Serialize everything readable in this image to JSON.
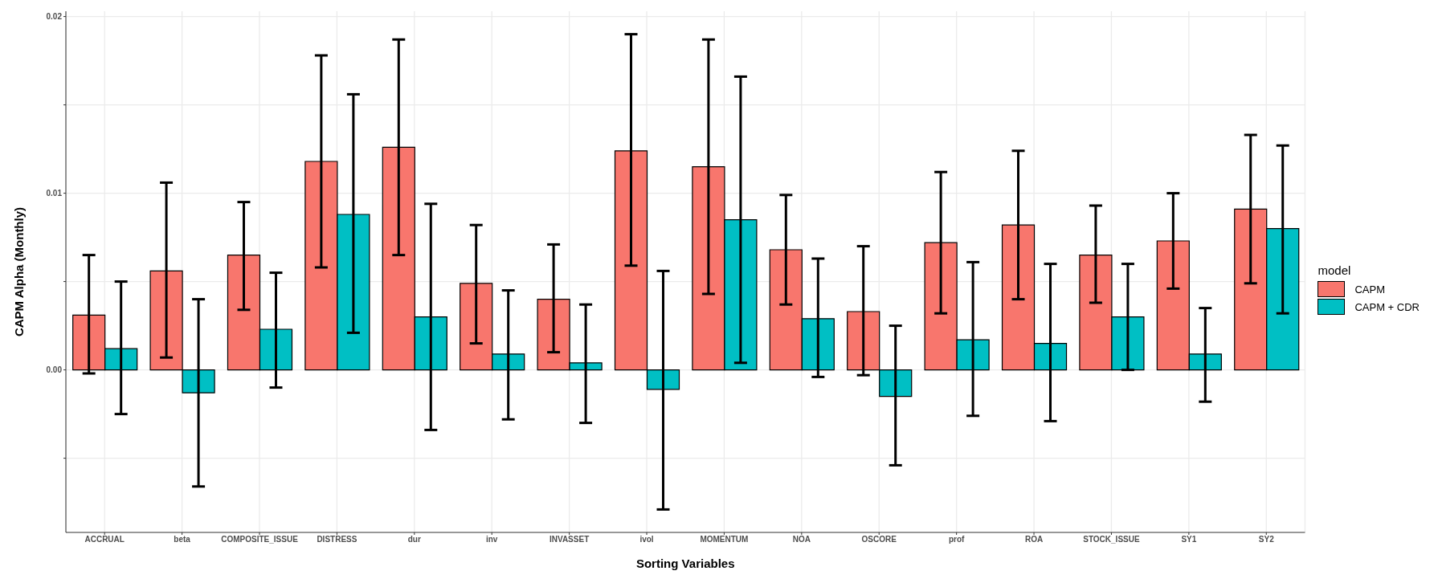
{
  "chart_data": {
    "type": "bar",
    "xlabel": "Sorting Variables",
    "ylabel": "CAPM Alpha (Monthly)",
    "legend_title": "model",
    "legend": "right",
    "grid": true,
    "categories": [
      "ACCRUAL",
      "beta",
      "COMPOSITE_ISSUE",
      "DISTRESS",
      "dur",
      "inv",
      "INVASSET",
      "ivol",
      "MOMENTUM",
      "NOA",
      "OSCORE",
      "prof",
      "ROA",
      "STOCK_ISSUE",
      "SY1",
      "SY2"
    ],
    "ylim": [
      -0.0092,
      0.0203
    ],
    "yticks": [
      {
        "value": -0.005,
        "label": null
      },
      {
        "value": 0,
        "label": "0.00"
      },
      {
        "value": 0.005,
        "label": null
      },
      {
        "value": 0.01,
        "label": "0.01"
      },
      {
        "value": 0.015,
        "label": null
      },
      {
        "value": 0.02,
        "label": "0.02"
      }
    ],
    "series": [
      {
        "name": "CAPM",
        "color": "#f8766d",
        "values": [
          0.0031,
          0.0056,
          0.0065,
          0.0118,
          0.0126,
          0.0049,
          0.004,
          0.0124,
          0.0115,
          0.0068,
          0.0033,
          0.0072,
          0.0082,
          0.0065,
          0.0073,
          0.0091
        ],
        "errors": [
          [
            -0.0002,
            0.0065
          ],
          [
            0.0007,
            0.0106
          ],
          [
            0.0034,
            0.0095
          ],
          [
            0.0058,
            0.0178
          ],
          [
            0.0065,
            0.0187
          ],
          [
            0.0015,
            0.0082
          ],
          [
            0.001,
            0.0071
          ],
          [
            0.0059,
            0.019
          ],
          [
            0.0043,
            0.0187
          ],
          [
            0.0037,
            0.0099
          ],
          [
            -0.0003,
            0.007
          ],
          [
            0.0032,
            0.0112
          ],
          [
            0.004,
            0.0124
          ],
          [
            0.0038,
            0.0093
          ],
          [
            0.0046,
            0.01
          ],
          [
            0.0049,
            0.0133
          ]
        ]
      },
      {
        "name": "CAPM + CDR",
        "color": "#00bfc4",
        "values": [
          0.0012,
          -0.0013,
          0.0023,
          0.0088,
          0.003,
          0.0009,
          0.0004,
          -0.0011,
          0.0085,
          0.0029,
          -0.0015,
          0.0017,
          0.0015,
          0.003,
          0.0009,
          0.008
        ],
        "errors": [
          [
            -0.0025,
            0.005
          ],
          [
            -0.0066,
            0.004
          ],
          [
            -0.001,
            0.0055
          ],
          [
            0.0021,
            0.0156
          ],
          [
            -0.0034,
            0.0094
          ],
          [
            -0.0028,
            0.0045
          ],
          [
            -0.003,
            0.0037
          ],
          [
            -0.0079,
            0.0056
          ],
          [
            0.0004,
            0.0166
          ],
          [
            -0.0004,
            0.0063
          ],
          [
            -0.0054,
            0.0025
          ],
          [
            -0.0026,
            0.0061
          ],
          [
            -0.0029,
            0.006
          ],
          [
            0,
            0.006
          ],
          [
            -0.0018,
            0.0035
          ],
          [
            0.0032,
            0.0127
          ]
        ]
      }
    ]
  }
}
